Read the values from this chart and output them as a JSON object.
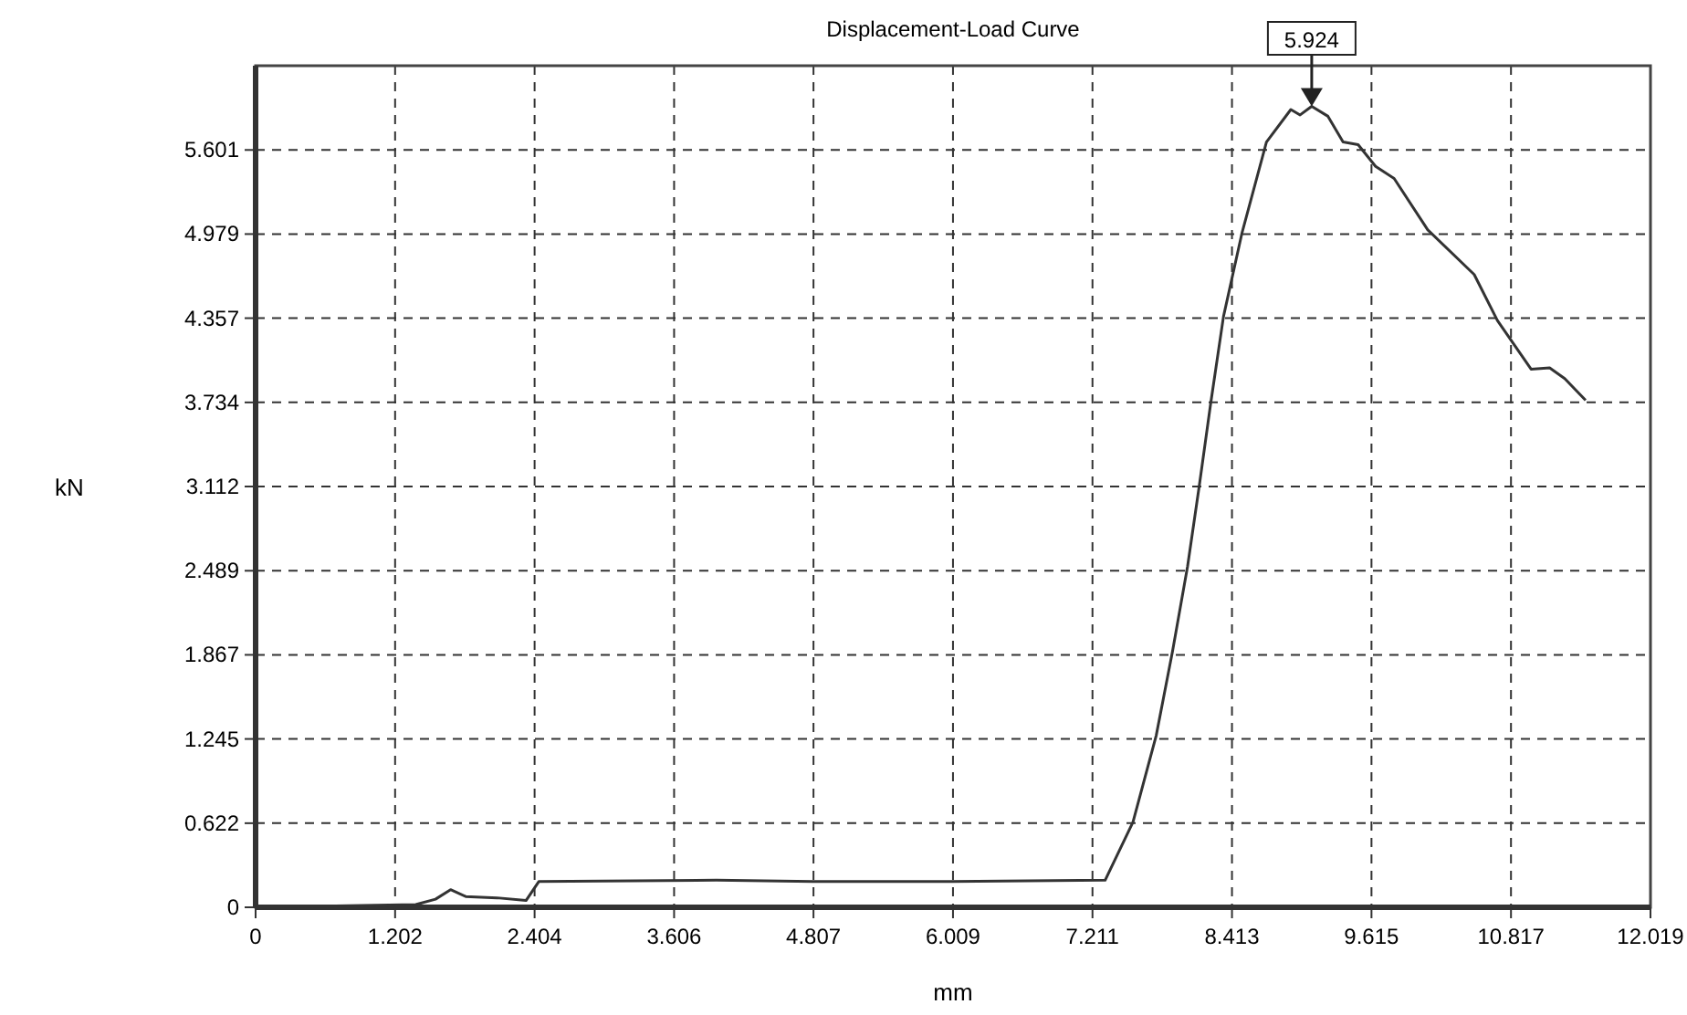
{
  "chart_data": {
    "type": "line",
    "title": "Displacement-Load Curve",
    "xlabel": "mm",
    "ylabel": "kN",
    "x": [
      0,
      1.38,
      1.55,
      1.68,
      1.81,
      2.08,
      2.33,
      2.44,
      3.97,
      4.8,
      6.0,
      7.32,
      7.56,
      7.76,
      7.9,
      8.03,
      8.13,
      8.23,
      8.34,
      8.5,
      8.71,
      8.92,
      9.0,
      9.1,
      9.24,
      9.37,
      9.5,
      9.65,
      9.81,
      10.1,
      10.5,
      10.7,
      10.99,
      11.15,
      11.28,
      11.46
    ],
    "series": [
      {
        "color": "#333333",
        "values": [
          0,
          0.02,
          0.06,
          0.13,
          0.08,
          0.07,
          0.05,
          0.19,
          0.2,
          0.19,
          0.19,
          0.2,
          0.63,
          1.27,
          1.89,
          2.52,
          3.11,
          3.73,
          4.37,
          4.99,
          5.66,
          5.9,
          5.86,
          5.924,
          5.85,
          5.66,
          5.64,
          5.48,
          5.39,
          5.01,
          4.68,
          4.34,
          3.98,
          3.99,
          3.91,
          3.75
        ]
      }
    ],
    "xlim": [
      0,
      12.019
    ],
    "ylim": [
      0,
      6.224
    ],
    "xticks": [
      0,
      1.202,
      2.404,
      3.606,
      4.807,
      6.009,
      7.211,
      8.413,
      9.615,
      10.817,
      12.019
    ],
    "yticks": [
      0,
      0.622,
      1.245,
      1.867,
      2.489,
      3.112,
      3.734,
      4.357,
      4.979,
      5.601
    ],
    "annotations": [
      {
        "text": "5.924",
        "x": 9.1,
        "y": 5.924
      }
    ],
    "grid": true,
    "marker": "none",
    "line_style": "solid"
  }
}
